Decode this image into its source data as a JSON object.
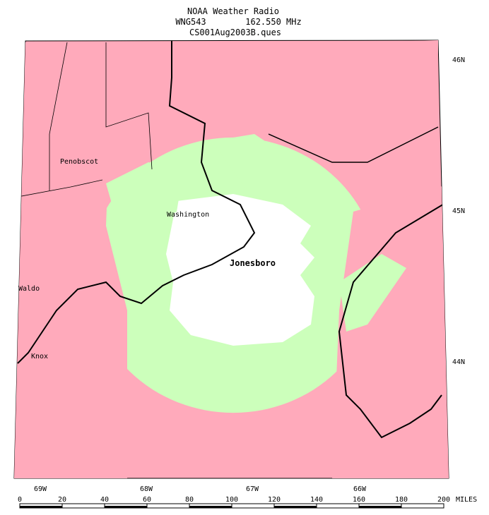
{
  "title": {
    "line1": "NOAA Weather Radio",
    "station": "WNG543",
    "frequency": "162.550 MHz",
    "line3": "CS001Aug2003B.ques"
  },
  "places": [
    "Penobscot",
    "Washington",
    "Jonesboro",
    "Waldo",
    "Knox"
  ],
  "latitudes": [
    "46N",
    "45N",
    "44N"
  ],
  "longitudes": [
    "69W",
    "68W",
    "67W",
    "66W"
  ],
  "scale": {
    "ticks": [
      0,
      20,
      40,
      60,
      80,
      100,
      120,
      140,
      160,
      180,
      200
    ],
    "unit": "MILES"
  }
}
